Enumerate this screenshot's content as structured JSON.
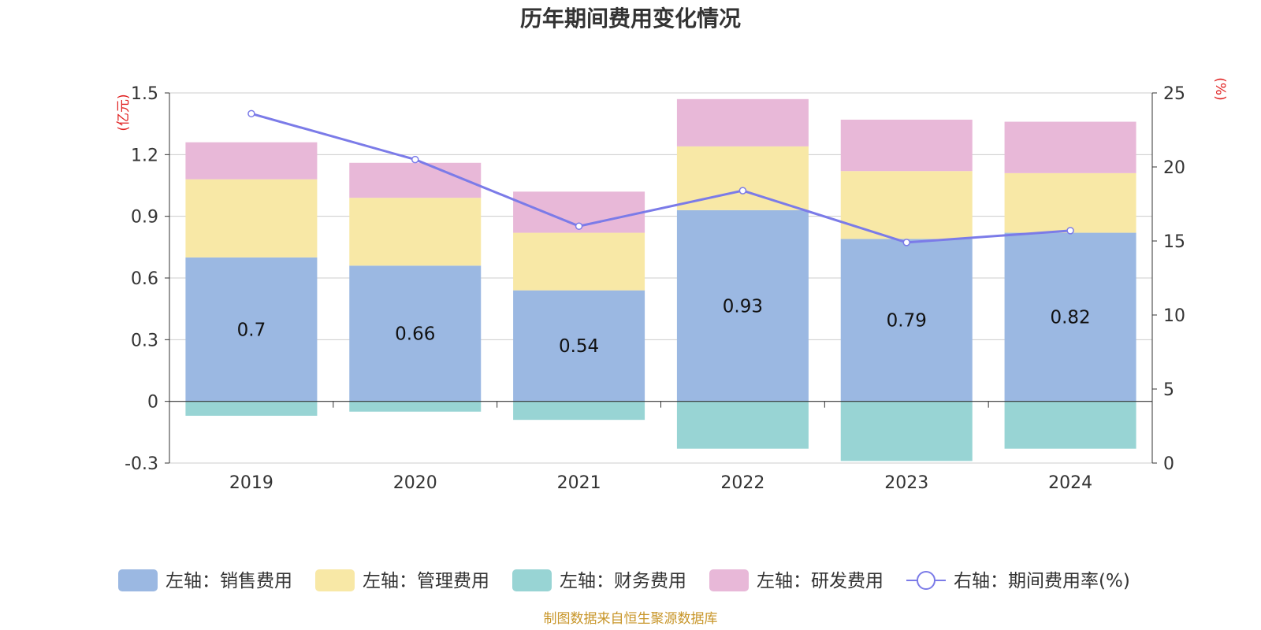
{
  "chart_data": {
    "type": "bar",
    "title": "历年期间费用变化情况",
    "categories": [
      "2019",
      "2020",
      "2021",
      "2022",
      "2023",
      "2024"
    ],
    "series": [
      {
        "name": "左轴：销售费用",
        "axis": "left",
        "kind": "bar",
        "color": "#9bb8e2",
        "values": [
          0.7,
          0.66,
          0.54,
          0.93,
          0.79,
          0.82
        ]
      },
      {
        "name": "左轴：管理费用",
        "axis": "left",
        "kind": "bar",
        "color": "#f8e8a6",
        "values": [
          0.38,
          0.33,
          0.28,
          0.31,
          0.33,
          0.29
        ]
      },
      {
        "name": "左轴：财务费用",
        "axis": "left",
        "kind": "bar",
        "color": "#98d4d4",
        "values": [
          -0.07,
          -0.05,
          -0.09,
          -0.23,
          -0.29,
          -0.23
        ]
      },
      {
        "name": "左轴：研发费用",
        "axis": "left",
        "kind": "bar",
        "color": "#e8b8d8",
        "values": [
          0.18,
          0.17,
          0.2,
          0.23,
          0.25,
          0.25
        ]
      },
      {
        "name": "右轴：期间费用率(%)",
        "axis": "right",
        "kind": "line",
        "color": "#7b7be8",
        "values": [
          23.6,
          20.5,
          16.0,
          18.4,
          14.9,
          15.7
        ]
      }
    ],
    "bar_labels": [
      "0.7",
      "0.66",
      "0.54",
      "0.93",
      "0.79",
      "0.82"
    ],
    "left_axis": {
      "unit": "(亿元)",
      "ylim": [
        -0.3,
        1.5
      ],
      "ticks": [
        -0.3,
        0,
        0.3,
        0.6,
        0.9,
        1.2,
        1.5
      ],
      "tick_labels": [
        "-0.3",
        "0",
        "0.3",
        "0.6",
        "0.9",
        "1.2",
        "1.5"
      ]
    },
    "right_axis": {
      "unit": "(%)",
      "ylim": [
        0,
        25
      ],
      "ticks": [
        0,
        5,
        10,
        15,
        20,
        25
      ],
      "tick_labels": [
        "0",
        "5",
        "10",
        "15",
        "20",
        "25"
      ]
    },
    "grid": true,
    "legend_position": "bottom"
  },
  "source": "制图数据来自恒生聚源数据库"
}
